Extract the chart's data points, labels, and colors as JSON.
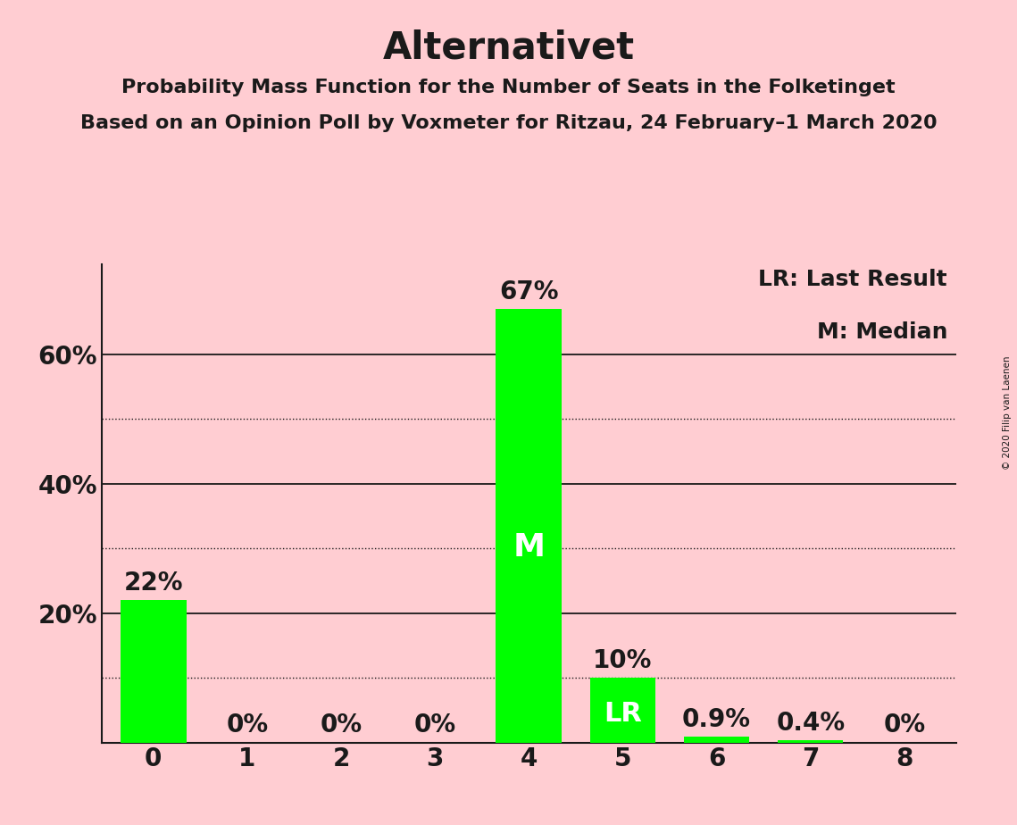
{
  "title": "Alternativet",
  "subtitle1": "Probability Mass Function for the Number of Seats in the Folketinget",
  "subtitle2": "Based on an Opinion Poll by Voxmeter for Ritzau, 24 February–1 March 2020",
  "copyright": "© 2020 Filip van Laenen",
  "categories": [
    0,
    1,
    2,
    3,
    4,
    5,
    6,
    7,
    8
  ],
  "values": [
    22,
    0,
    0,
    0,
    67,
    10,
    0.9,
    0.4,
    0
  ],
  "bar_color": "#00ff00",
  "background_color": "#ffcdd2",
  "label_above": [
    "22%",
    "0%",
    "0%",
    "0%",
    "67%",
    "10%",
    "0.9%",
    "0.4%",
    "0%"
  ],
  "median_bar": 4,
  "last_result_bar": 5,
  "median_label": "M",
  "lr_label": "LR",
  "legend_lr": "LR: Last Result",
  "legend_m": "M: Median",
  "ylim": [
    0,
    74
  ],
  "solid_grid": [
    20,
    40,
    60
  ],
  "dotted_grid": [
    10,
    30,
    50
  ],
  "title_fontsize": 30,
  "subtitle_fontsize": 16,
  "axis_fontsize": 20,
  "bar_label_fontsize": 20,
  "legend_fontsize": 18,
  "inner_label_fontsize": 26
}
